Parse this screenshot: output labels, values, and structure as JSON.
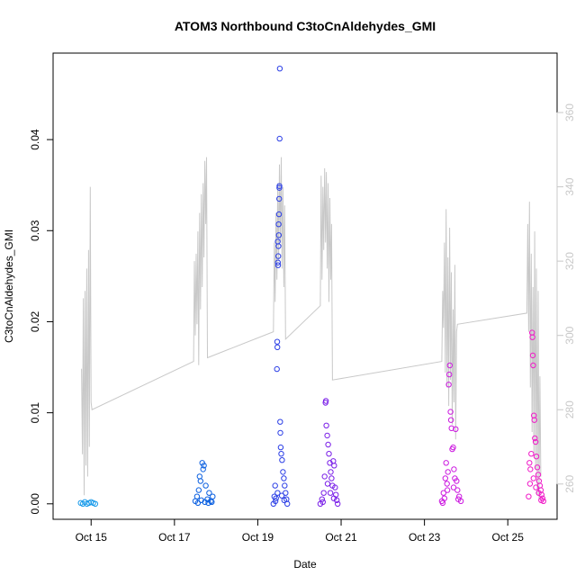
{
  "chart_data": {
    "type": "scatter",
    "title": "ATOM3 Northbound C3toCnAldehydes_GMI",
    "xlabel": "Date",
    "ylabel": "C3toCnAldehydes_GMI",
    "xlim": [
      "Oct 14 2.1h",
      "Oct 26 4.4h"
    ],
    "ylim": [
      -0.0017,
      0.0495
    ],
    "y2lim": [
      250.5,
      376
    ],
    "x_ticks": [
      "Oct 15",
      "Oct 17",
      "Oct 19",
      "Oct 21",
      "Oct 23",
      "Oct 25"
    ],
    "y_ticks": [
      "0.00",
      "0.01",
      "0.02",
      "0.03",
      "0.04"
    ],
    "y2_ticks": [
      "260",
      "280",
      "300",
      "320",
      "340",
      "360"
    ],
    "y2_color": "#c8c8c8",
    "grid": false,
    "legend": "none",
    "series": [
      {
        "kind": "points",
        "color": "#1a9bea",
        "points": [
          [
            "Oct 14 18.0h",
            0.0001
          ],
          [
            "Oct 14 19.2h",
            0.0
          ],
          [
            "Oct 14 20.4h",
            0.0002
          ],
          [
            "Oct 14 21.6h",
            0.0
          ],
          [
            "Oct 14 22.8h",
            0.0001
          ],
          [
            "Oct 15 0.0h",
            0.0002
          ],
          [
            "Oct 15 1.2h",
            0.0001
          ],
          [
            "Oct 15 2.4h",
            0.0
          ]
        ]
      },
      {
        "kind": "points",
        "color": "#0a5fe0",
        "points": [
          [
            "Oct 17 12.0h",
            0.0003
          ],
          [
            "Oct 17 13.0h",
            0.0008
          ],
          [
            "Oct 17 14.0h",
            0.0015
          ],
          [
            "Oct 17 14.5h",
            0.003
          ],
          [
            "Oct 17 15.0h",
            0.0025
          ],
          [
            "Oct 17 16.0h",
            0.0045
          ],
          [
            "Oct 17 16.5h",
            0.0038
          ],
          [
            "Oct 17 17.0h",
            0.0042
          ],
          [
            "Oct 17 18.0h",
            0.002
          ],
          [
            "Oct 17 19.0h",
            0.0005
          ],
          [
            "Oct 17 20.0h",
            0.0012
          ],
          [
            "Oct 17 21.0h",
            0.0003
          ],
          [
            "Oct 17 22.0h",
            0.0008
          ],
          [
            "Oct 17 13.5h",
            0.0001
          ],
          [
            "Oct 17 15.5h",
            0.0004
          ],
          [
            "Oct 17 17.5h",
            0.0002
          ],
          [
            "Oct 17 19.5h",
            0.0001
          ],
          [
            "Oct 17 21.5h",
            0.0002
          ]
        ]
      },
      {
        "kind": "points",
        "color": "#2c3fe6",
        "points": [
          [
            "Oct 19 9.0h",
            0.0
          ],
          [
            "Oct 19 9.5h",
            0.0008
          ],
          [
            "Oct 19 10.0h",
            0.002
          ],
          [
            "Oct 19 10.5h",
            0.0006
          ],
          [
            "Oct 19 11.0h",
            0.0148
          ],
          [
            "Oct 19 11.2h",
            0.0178
          ],
          [
            "Oct 19 11.3h",
            0.0172
          ],
          [
            "Oct 19 11.5h",
            0.0288
          ],
          [
            "Oct 19 11.6h",
            0.0265
          ],
          [
            "Oct 19 11.7h",
            0.0262
          ],
          [
            "Oct 19 11.8h",
            0.0272
          ],
          [
            "Oct 19 11.9h",
            0.0283
          ],
          [
            "Oct 19 12.0h",
            0.0307
          ],
          [
            "Oct 19 12.1h",
            0.0295
          ],
          [
            "Oct 19 12.2h",
            0.0318
          ],
          [
            "Oct 19 12.3h",
            0.0335
          ],
          [
            "Oct 19 12.4h",
            0.0347
          ],
          [
            "Oct 19 12.5h",
            0.0349
          ],
          [
            "Oct 19 12.6h",
            0.0401
          ],
          [
            "Oct 19 12.7h",
            0.0478
          ],
          [
            "Oct 19 12.9h",
            0.009
          ],
          [
            "Oct 19 13.0h",
            0.0078
          ],
          [
            "Oct 19 13.2h",
            0.0062
          ],
          [
            "Oct 19 13.5h",
            0.0055
          ],
          [
            "Oct 19 14.0h",
            0.0048
          ],
          [
            "Oct 19 14.5h",
            0.0035
          ],
          [
            "Oct 19 15.0h",
            0.0028
          ],
          [
            "Oct 19 15.5h",
            0.002
          ],
          [
            "Oct 19 16.0h",
            0.0012
          ],
          [
            "Oct 19 16.5h",
            0.0005
          ],
          [
            "Oct 19 17.0h",
            0.0
          ],
          [
            "Oct 19 10.2h",
            0.0003
          ],
          [
            "Oct 19 11.4h",
            0.0012
          ],
          [
            "Oct 19 13.8h",
            0.0009
          ],
          [
            "Oct 19 15.2h",
            0.0004
          ]
        ]
      },
      {
        "kind": "points",
        "color": "#7a1fe8",
        "points": [
          [
            "Oct 20 12.0h",
            0.0
          ],
          [
            "Oct 20 13.0h",
            0.0005
          ],
          [
            "Oct 20 14.0h",
            0.0012
          ],
          [
            "Oct 20 14.5h",
            0.003
          ],
          [
            "Oct 20 15.0h",
            0.0111
          ],
          [
            "Oct 20 15.2h",
            0.0113
          ],
          [
            "Oct 20 15.5h",
            0.0086
          ],
          [
            "Oct 20 16.0h",
            0.0075
          ],
          [
            "Oct 20 16.5h",
            0.0065
          ],
          [
            "Oct 20 17.0h",
            0.0055
          ],
          [
            "Oct 20 17.5h",
            0.0045
          ],
          [
            "Oct 20 18.0h",
            0.0035
          ],
          [
            "Oct 20 18.5h",
            0.0028
          ],
          [
            "Oct 20 19.0h",
            0.002
          ],
          [
            "Oct 20 19.5h",
            0.0047
          ],
          [
            "Oct 20 20.0h",
            0.0042
          ],
          [
            "Oct 20 20.5h",
            0.0018
          ],
          [
            "Oct 20 21.0h",
            0.001
          ],
          [
            "Oct 20 21.5h",
            0.0004
          ],
          [
            "Oct 20 22.0h",
            0.0
          ],
          [
            "Oct 20 13.5h",
            0.0002
          ],
          [
            "Oct 20 16.2h",
            0.0022
          ],
          [
            "Oct 20 17.8h",
            0.0012
          ],
          [
            "Oct 20 19.8h",
            0.0006
          ]
        ]
      },
      {
        "kind": "points",
        "color": "#cc1ae0",
        "points": [
          [
            "Oct 23 10.0h",
            0.0003
          ],
          [
            "Oct 23 11.0h",
            0.0012
          ],
          [
            "Oct 23 12.0h",
            0.0028
          ],
          [
            "Oct 23 12.5h",
            0.0045
          ],
          [
            "Oct 23 13.0h",
            0.0022
          ],
          [
            "Oct 23 13.5h",
            0.0035
          ],
          [
            "Oct 23 14.0h",
            0.0131
          ],
          [
            "Oct 23 14.3h",
            0.0142
          ],
          [
            "Oct 23 14.6h",
            0.0152
          ],
          [
            "Oct 23 15.0h",
            0.0101
          ],
          [
            "Oct 23 15.3h",
            0.0092
          ],
          [
            "Oct 23 15.6h",
            0.0083
          ],
          [
            "Oct 23 16.0h",
            0.006
          ],
          [
            "Oct 23 16.5h",
            0.0062
          ],
          [
            "Oct 23 17.0h",
            0.0038
          ],
          [
            "Oct 23 17.5h",
            0.0028
          ],
          [
            "Oct 23 18.0h",
            0.0082
          ],
          [
            "Oct 23 18.5h",
            0.0025
          ],
          [
            "Oct 23 19.0h",
            0.0015
          ],
          [
            "Oct 23 20.0h",
            0.0008
          ],
          [
            "Oct 23 21.0h",
            0.0003
          ],
          [
            "Oct 23 10.5h",
            0.0001
          ],
          [
            "Oct 23 11.5h",
            0.0006
          ],
          [
            "Oct 23 13.2h",
            0.0015
          ],
          [
            "Oct 23 16.8h",
            0.0018
          ],
          [
            "Oct 23 19.5h",
            0.0005
          ]
        ]
      },
      {
        "kind": "points",
        "color": "#f01ac8",
        "points": [
          [
            "Oct 25 12.0h",
            0.0008
          ],
          [
            "Oct 25 12.5h",
            0.0045
          ],
          [
            "Oct 25 13.0h",
            0.0038
          ],
          [
            "Oct 25 13.5h",
            0.0055
          ],
          [
            "Oct 25 14.0h",
            0.0188
          ],
          [
            "Oct 25 14.2h",
            0.0183
          ],
          [
            "Oct 25 14.4h",
            0.0163
          ],
          [
            "Oct 25 14.6h",
            0.0152
          ],
          [
            "Oct 25 15.0h",
            0.0097
          ],
          [
            "Oct 25 15.3h",
            0.0092
          ],
          [
            "Oct 25 15.6h",
            0.0072
          ],
          [
            "Oct 25 16.0h",
            0.0068
          ],
          [
            "Oct 25 16.5h",
            0.0052
          ],
          [
            "Oct 25 17.0h",
            0.004
          ],
          [
            "Oct 25 17.5h",
            0.0032
          ],
          [
            "Oct 25 18.0h",
            0.0025
          ],
          [
            "Oct 25 18.5h",
            0.002
          ],
          [
            "Oct 25 19.0h",
            0.0015
          ],
          [
            "Oct 25 19.5h",
            0.001
          ],
          [
            "Oct 25 20.0h",
            0.0006
          ],
          [
            "Oct 25 20.5h",
            0.0003
          ],
          [
            "Oct 25 12.8h",
            0.0022
          ],
          [
            "Oct 25 14.8h",
            0.0028
          ],
          [
            "Oct 25 16.2h",
            0.0018
          ],
          [
            "Oct 25 17.8h",
            0.0012
          ],
          [
            "Oct 25 19.2h",
            0.0004
          ]
        ]
      },
      {
        "kind": "line",
        "axis": "right",
        "color": "#c8c8c8",
        "points": [
          [
            "Oct 14 18.5h",
            291
          ],
          [
            "Oct 14 19.0h",
            268
          ],
          [
            "Oct 14 19.5h",
            310
          ],
          [
            "Oct 14 20.0h",
            257
          ],
          [
            "Oct 14 20.5h",
            312
          ],
          [
            "Oct 14 21.0h",
            265
          ],
          [
            "Oct 14 21.5h",
            318
          ],
          [
            "Oct 14 22.0h",
            262
          ],
          [
            "Oct 14 22.5h",
            323
          ],
          [
            "Oct 14 23.0h",
            270
          ],
          [
            "Oct 14 23.5h",
            340
          ],
          [
            "Oct 15 0.0h",
            282
          ],
          [
            "Oct 15 0.5h",
            280
          ],
          [
            "Oct 17 11.0h",
            293
          ],
          [
            "Oct 17 11.5h",
            320
          ],
          [
            "Oct 17 12.0h",
            300
          ],
          [
            "Oct 17 12.5h",
            322
          ],
          [
            "Oct 17 13.0h",
            303
          ],
          [
            "Oct 17 13.5h",
            328
          ],
          [
            "Oct 17 14.0h",
            292
          ],
          [
            "Oct 17 14.5h",
            333
          ],
          [
            "Oct 17 15.0h",
            307
          ],
          [
            "Oct 17 15.5h",
            338
          ],
          [
            "Oct 17 16.0h",
            313
          ],
          [
            "Oct 17 16.5h",
            341
          ],
          [
            "Oct 17 17.0h",
            321
          ],
          [
            "Oct 17 17.5h",
            347
          ],
          [
            "Oct 17 18.0h",
            330
          ],
          [
            "Oct 17 18.5h",
            348
          ],
          [
            "Oct 17 19.0h",
            294
          ],
          [
            "Oct 19 9.0h",
            301
          ],
          [
            "Oct 19 9.5h",
            325
          ],
          [
            "Oct 19 10.0h",
            309
          ],
          [
            "Oct 19 10.5h",
            333
          ],
          [
            "Oct 19 11.0h",
            315
          ],
          [
            "Oct 19 11.5h",
            341
          ],
          [
            "Oct 19 12.0h",
            320
          ],
          [
            "Oct 19 12.5h",
            346
          ],
          [
            "Oct 19 13.0h",
            325
          ],
          [
            "Oct 19 13.5h",
            348
          ],
          [
            "Oct 19 14.0h",
            318
          ],
          [
            "Oct 19 14.5h",
            340
          ],
          [
            "Oct 19 15.0h",
            313
          ],
          [
            "Oct 19 15.5h",
            335
          ],
          [
            "Oct 19 16.0h",
            299
          ],
          [
            "Oct 20 12.0h",
            308
          ],
          [
            "Oct 20 12.5h",
            343
          ],
          [
            "Oct 20 13.0h",
            315
          ],
          [
            "Oct 20 13.5h",
            340
          ],
          [
            "Oct 20 14.0h",
            323
          ],
          [
            "Oct 20 14.5h",
            345
          ],
          [
            "Oct 20 15.0h",
            325
          ],
          [
            "Oct 20 15.5h",
            344
          ],
          [
            "Oct 20 16.0h",
            318
          ],
          [
            "Oct 20 16.5h",
            341
          ],
          [
            "Oct 20 17.0h",
            309
          ],
          [
            "Oct 20 17.5h",
            337
          ],
          [
            "Oct 20 18.0h",
            315
          ],
          [
            "Oct 20 18.5h",
            330
          ],
          [
            "Oct 20 19.0h",
            288
          ],
          [
            "Oct 23 10.0h",
            293
          ],
          [
            "Oct 23 10.5h",
            312
          ],
          [
            "Oct 23 11.0h",
            302
          ],
          [
            "Oct 23 11.5h",
            325
          ],
          [
            "Oct 23 12.0h",
            290
          ],
          [
            "Oct 23 12.5h",
            334
          ],
          [
            "Oct 23 13.0h",
            286
          ],
          [
            "Oct 23 13.5h",
            321
          ],
          [
            "Oct 23 14.0h",
            281
          ],
          [
            "Oct 23 14.5h",
            329
          ],
          [
            "Oct 23 15.0h",
            288
          ],
          [
            "Oct 23 15.5h",
            317
          ],
          [
            "Oct 23 16.0h",
            276
          ],
          [
            "Oct 23 16.5h",
            307
          ],
          [
            "Oct 23 17.0h",
            282
          ],
          [
            "Oct 23 17.5h",
            319
          ],
          [
            "Oct 23 18.0h",
            272
          ],
          [
            "Oct 23 18.5h",
            301
          ],
          [
            "Oct 23 19.0h",
            303
          ],
          [
            "Oct 25 11.0h",
            306
          ],
          [
            "Oct 25 11.5h",
            330
          ],
          [
            "Oct 25 12.0h",
            301
          ],
          [
            "Oct 25 12.5h",
            336
          ],
          [
            "Oct 25 13.0h",
            286
          ],
          [
            "Oct 25 13.5h",
            322
          ],
          [
            "Oct 25 14.0h",
            274
          ],
          [
            "Oct 25 14.5h",
            313
          ],
          [
            "Oct 25 15.0h",
            268
          ],
          [
            "Oct 25 15.5h",
            328
          ],
          [
            "Oct 25 16.0h",
            264
          ],
          [
            "Oct 25 16.5h",
            318
          ],
          [
            "Oct 25 17.0h",
            257
          ],
          [
            "Oct 25 17.5h",
            312
          ],
          [
            "Oct 25 18.0h",
            256
          ],
          [
            "Oct 25 18.5h",
            289
          ],
          [
            "Oct 25 19.0h",
            262
          ]
        ]
      }
    ]
  }
}
